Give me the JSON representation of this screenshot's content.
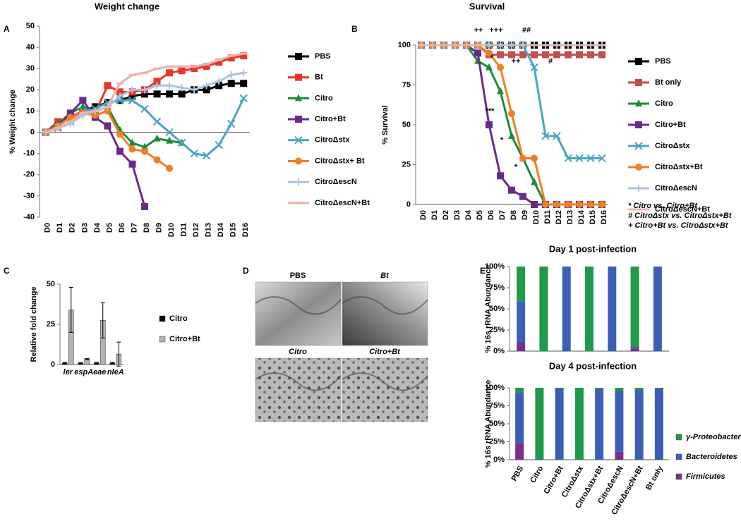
{
  "chart_data": [
    {
      "panel": "A",
      "type": "line",
      "title": "Weight change",
      "y_label": "% Weight change",
      "categories": [
        "D0",
        "D1",
        "D2",
        "D3",
        "D4",
        "D5",
        "D6",
        "D7",
        "D8",
        "D9",
        "D10",
        "D11",
        "D12",
        "D13",
        "D14",
        "D15",
        "D16"
      ],
      "ylim": [
        -40,
        50
      ],
      "yticks": [
        -40,
        -30,
        -20,
        -10,
        0,
        10,
        20,
        30,
        40,
        50
      ],
      "series": [
        {
          "name": "PBS",
          "color": "#000000",
          "marker": "square",
          "values": [
            0,
            5,
            6,
            10,
            12,
            14,
            15,
            17,
            18,
            18,
            18,
            18,
            20,
            20,
            22,
            23,
            23
          ]
        },
        {
          "name": "Bt",
          "color": "#e8362a",
          "marker": "square",
          "values": [
            0,
            5,
            7,
            10,
            9,
            22,
            19,
            19,
            20,
            24,
            28,
            29,
            30,
            31,
            33,
            35,
            36
          ]
        },
        {
          "name": "Citro",
          "color": "#1b8c3a",
          "marker": "triangle",
          "values": [
            0,
            4,
            9,
            12,
            10,
            12,
            1,
            -5,
            -7,
            -3,
            -4,
            -5,
            null,
            null,
            null,
            null,
            null
          ]
        },
        {
          "name": "Citro+Bt",
          "color": "#6a2a8a",
          "marker": "square",
          "values": [
            0,
            3,
            9,
            15,
            7,
            3,
            -9,
            -15,
            -35,
            null,
            null,
            null,
            null,
            null,
            null,
            null,
            null
          ]
        },
        {
          "name": "CitroΔstx",
          "color": "#4aa6bf",
          "marker": "x",
          "values": [
            0,
            2,
            5,
            10,
            11,
            14,
            15,
            15,
            11,
            5,
            0,
            -5,
            -10,
            -11,
            -6,
            4,
            16
          ]
        },
        {
          "name": "CitroΔstx+ Bt",
          "color": "#f07f22",
          "marker": "circle",
          "values": [
            0,
            3,
            7,
            9,
            8,
            10,
            -1,
            -8,
            -9,
            -13,
            -17,
            null,
            null,
            null,
            null,
            null,
            null
          ]
        },
        {
          "name": "CitroΔescN",
          "color": "#a8c4e0",
          "marker": "plus",
          "values": [
            0,
            2,
            4,
            8,
            10,
            12,
            17,
            20,
            20,
            22,
            22,
            21,
            20,
            22,
            24,
            27,
            28
          ]
        },
        {
          "name": "CitroΔescN+Bt",
          "color": "#e8b4ac",
          "marker": "dash",
          "values": [
            0,
            2,
            5,
            9,
            10,
            12,
            23,
            27,
            28,
            30,
            31,
            31,
            31,
            32,
            34,
            36,
            37
          ]
        }
      ]
    },
    {
      "panel": "B",
      "type": "line",
      "title": "Survival",
      "y_label": "% Survival",
      "categories": [
        "D0",
        "D1",
        "D2",
        "D3",
        "D4",
        "D5",
        "D6",
        "D7",
        "D8",
        "D9",
        "D10",
        "D11",
        "D12",
        "D13",
        "D14",
        "D15",
        "D16"
      ],
      "ylim": [
        0,
        100
      ],
      "yticks": [
        0,
        25,
        50,
        75,
        100
      ],
      "series": [
        {
          "name": "PBS",
          "color": "#000000",
          "marker": "square",
          "values": [
            100,
            100,
            100,
            100,
            100,
            100,
            100,
            100,
            100,
            100,
            100,
            100,
            100,
            100,
            100,
            100,
            100
          ]
        },
        {
          "name": "Bt only",
          "color": "#c0504d",
          "marker": "square",
          "values": [
            100,
            100,
            100,
            100,
            100,
            100,
            94,
            94,
            94,
            94,
            94,
            94,
            94,
            94,
            94,
            94,
            94
          ]
        },
        {
          "name": "Citro",
          "color": "#1b8c3a",
          "marker": "triangle",
          "values": [
            100,
            100,
            100,
            100,
            100,
            90,
            86,
            71,
            43,
            29,
            14,
            0,
            0,
            0,
            0,
            0,
            0
          ]
        },
        {
          "name": "Citro+Bt",
          "color": "#6a2a8a",
          "marker": "square",
          "values": [
            100,
            100,
            100,
            100,
            100,
            95,
            50,
            18,
            9,
            5,
            0,
            0,
            0,
            0,
            0,
            0,
            0
          ]
        },
        {
          "name": "CitroΔstx",
          "color": "#4aa6bf",
          "marker": "x",
          "values": [
            100,
            100,
            100,
            100,
            100,
            100,
            100,
            100,
            100,
            100,
            86,
            43,
            43,
            29,
            29,
            29,
            29
          ]
        },
        {
          "name": "CitroΔstx+Bt",
          "color": "#f07f22",
          "marker": "circle",
          "values": [
            100,
            100,
            100,
            100,
            100,
            100,
            95,
            86,
            57,
            29,
            29,
            0,
            0,
            0,
            0,
            0,
            0
          ]
        },
        {
          "name": "CitroΔescN",
          "color": "#a8c4e0",
          "marker": "plus",
          "values": [
            100,
            100,
            100,
            100,
            100,
            100,
            100,
            100,
            100,
            100,
            100,
            100,
            100,
            100,
            100,
            100,
            100
          ]
        },
        {
          "name": "CitroΔescN+Bt",
          "color": "#e8b4ac",
          "marker": "dash",
          "values": [
            100,
            100,
            100,
            100,
            100,
            100,
            100,
            100,
            100,
            100,
            100,
            100,
            100,
            100,
            100,
            100,
            100
          ]
        }
      ],
      "annotations": [
        "++",
        "+++",
        "##",
        "*",
        "***",
        "*",
        "*",
        "++",
        "#"
      ],
      "notes": [
        "* Citro vs. Citro+Bt",
        "# CitroΔstx vs. CitroΔstx+Bt",
        "+ Citro+Bt vs. CitroΔstx+Bt"
      ]
    },
    {
      "panel": "C",
      "type": "bar",
      "y_label": "Relative fold change",
      "categories": [
        "ler",
        "espA",
        "eae",
        "nleA"
      ],
      "ylim": [
        0,
        50
      ],
      "yticks": [
        0,
        25,
        50
      ],
      "series": [
        {
          "name": "Citro",
          "color": "#000000",
          "values": [
            1,
            1,
            1,
            1
          ],
          "errors": [
            0.3,
            0.2,
            0.3,
            0.5
          ]
        },
        {
          "name": "Citro+Bt",
          "color": "#b3b3b3",
          "values": [
            34,
            3.5,
            27.5,
            6.5
          ],
          "errors": [
            14,
            0.3,
            11,
            7.5
          ]
        }
      ]
    },
    {
      "panel": "E",
      "type": "bar",
      "stacked": true,
      "title": "Day 1 post-infection",
      "y_label": "% 16s rRNA Abundance",
      "ylim": [
        0,
        100
      ],
      "yticks": [
        {
          "value": 0,
          "label": "0%"
        },
        {
          "value": 25,
          "label": "25%"
        },
        {
          "value": 50,
          "label": "50%"
        },
        {
          "value": 75,
          "label": "75%"
        },
        {
          "value": 100,
          "label": "100%"
        }
      ],
      "series": [
        {
          "color": "#7a2f8a",
          "values": [
            10,
            0,
            0,
            0,
            0,
            3,
            0
          ]
        },
        {
          "color": "#3b5fb5",
          "values": [
            49,
            0,
            100,
            0,
            100,
            2,
            100
          ]
        },
        {
          "color": "#1f9a48",
          "values": [
            41,
            100,
            0,
            100,
            0,
            95,
            0
          ]
        }
      ]
    },
    {
      "type": "bar",
      "stacked": true,
      "title": "Day 4 post-infection",
      "y_label": "% 16s rRNA Abundance",
      "categories": [
        "PBS",
        "Citro",
        "Citro+Bt",
        "CitroΔstx",
        "CitroΔstx+Bt",
        "CitroΔescN",
        "CitroΔescN+Bt",
        "Bt only"
      ],
      "ylim": [
        0,
        100
      ],
      "yticks": [
        {
          "value": 0,
          "label": "0%"
        },
        {
          "value": 25,
          "label": "25%"
        },
        {
          "value": 50,
          "label": "50%"
        },
        {
          "value": 75,
          "label": "75%"
        },
        {
          "value": 100,
          "label": "100%"
        }
      ],
      "series": [
        {
          "name": "Firmicutes",
          "color": "#7a2f8a",
          "values": [
            22,
            0,
            0,
            0,
            0,
            11,
            0,
            0
          ]
        },
        {
          "name": "Bacteroidetes",
          "color": "#3b5fb5",
          "values": [
            72,
            1,
            100,
            0,
            98,
            85,
            97,
            100
          ]
        },
        {
          "name": "γ-Proteobacteria",
          "color": "#1f9a48",
          "values": [
            6,
            99,
            0,
            100,
            2,
            4,
            3,
            0
          ]
        }
      ]
    }
  ],
  "figure_d": {
    "panel": "D",
    "images": [
      {
        "title": "PBS"
      },
      {
        "title": "Bt"
      },
      {
        "title": "Citro"
      },
      {
        "title": "Citro+Bt"
      }
    ]
  }
}
